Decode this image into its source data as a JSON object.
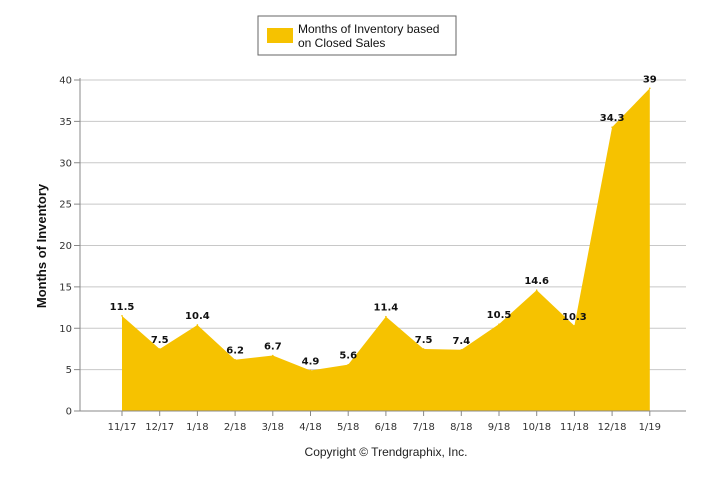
{
  "chart_data": {
    "type": "area",
    "categories": [
      "11/17",
      "12/17",
      "1/18",
      "2/18",
      "3/18",
      "4/18",
      "5/18",
      "6/18",
      "7/18",
      "8/18",
      "9/18",
      "10/18",
      "11/18",
      "12/18",
      "1/19"
    ],
    "series": [
      {
        "name_line1": "Months of Inventory based",
        "name_line2": "on Closed Sales",
        "values": [
          11.5,
          7.5,
          10.4,
          6.2,
          6.7,
          4.9,
          5.6,
          11.4,
          7.5,
          7.4,
          10.5,
          14.6,
          10.3,
          34.3,
          39
        ],
        "data_labels": [
          "11.5",
          "7.5",
          "10.4",
          "6.2",
          "6.7",
          "4.9",
          "5.6",
          "11.4",
          "7.5",
          "7.4",
          "10.5",
          "14.6",
          "10.3",
          "34.3",
          "39"
        ],
        "color": "#F6C200"
      }
    ],
    "ylabel": "Months of Inventory",
    "ylim": [
      0,
      40
    ],
    "yticks": [
      0,
      5,
      10,
      15,
      20,
      25,
      30,
      35,
      40
    ],
    "grid": true,
    "legend_position": "top-center"
  },
  "copyright": "Copyright © Trendgraphix, Inc."
}
